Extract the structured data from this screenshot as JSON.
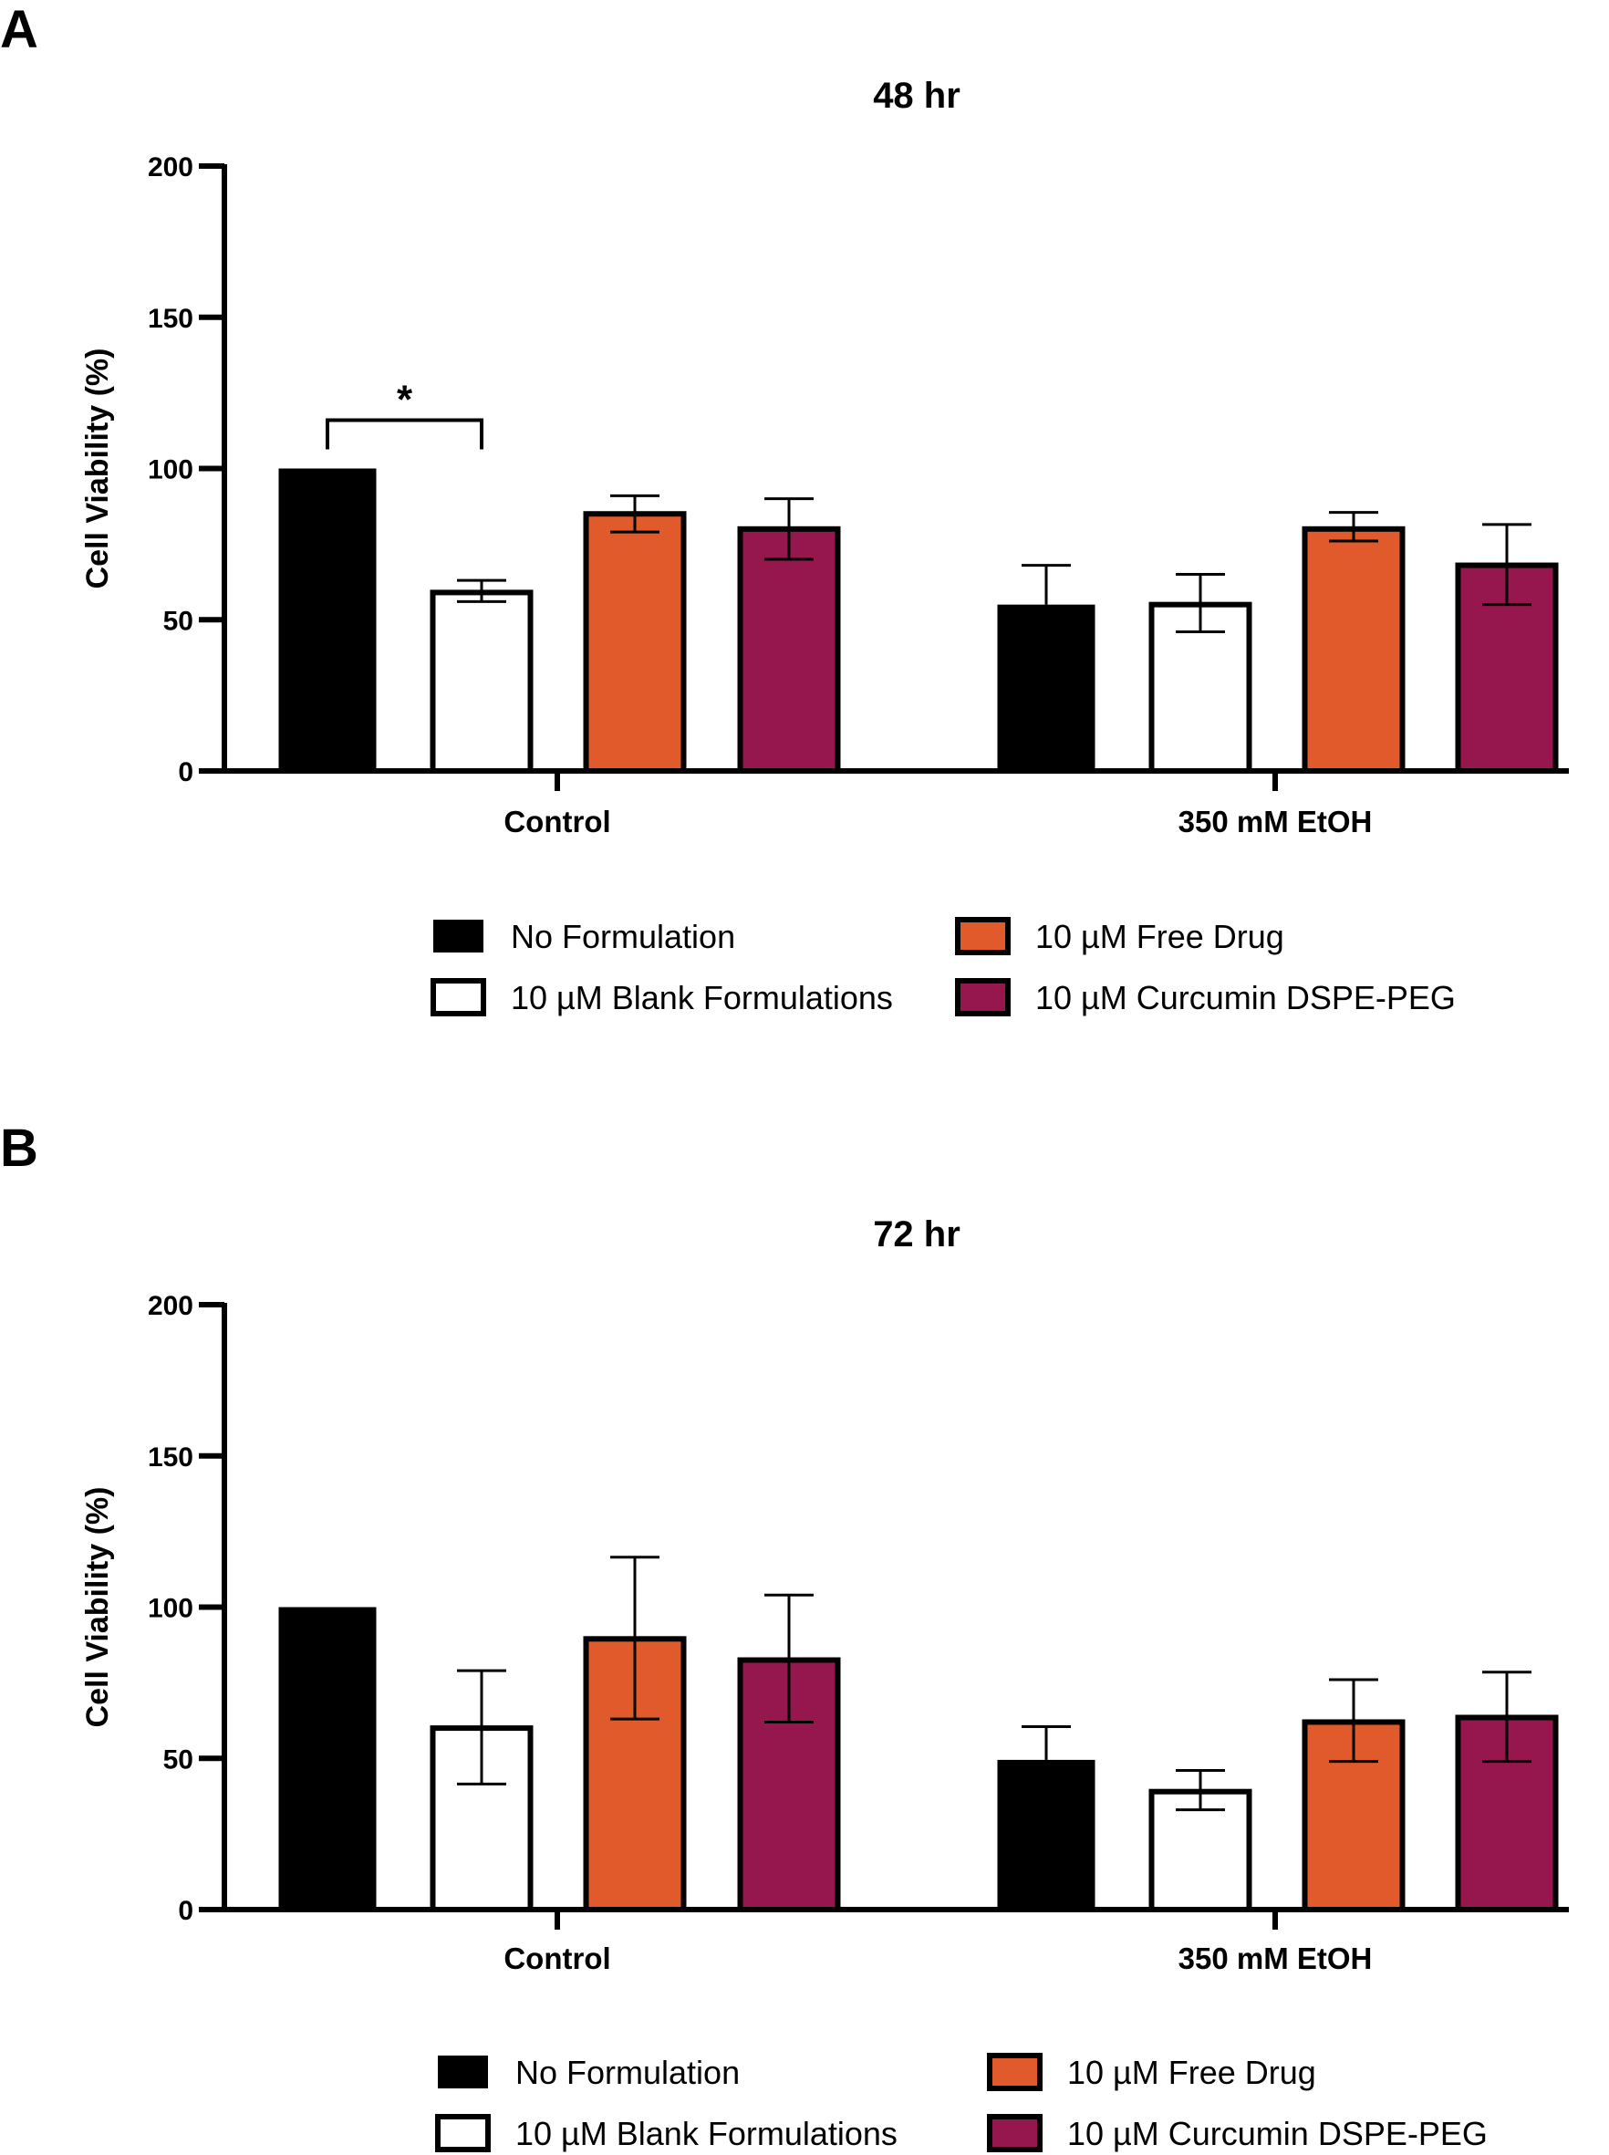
{
  "legend": [
    {
      "label": "No Formulation",
      "fill": "#000000",
      "stroke": "#000000"
    },
    {
      "label": "10 µM Blank Formulations",
      "fill": "#ffffff",
      "stroke": "#000000"
    },
    {
      "label": "10 µM Free Drug",
      "fill": "#e05a2b",
      "stroke": "#000000"
    },
    {
      "label": "10 µM Curcumin DSPE-PEG",
      "fill": "#96174e",
      "stroke": "#000000"
    }
  ],
  "chart_data": [
    {
      "panel": "A",
      "type": "bar",
      "title": "48 hr",
      "xlabel": "",
      "ylabel": "Cell Viability (%)",
      "ylim": [
        0,
        200
      ],
      "yticks": [
        0,
        50,
        100,
        150,
        200
      ],
      "categories": [
        "Control",
        "350 mM EtOH"
      ],
      "series": [
        {
          "name": "No Formulation",
          "values": [
            100,
            55
          ],
          "err_hi": [
            0,
            13
          ],
          "err_lo": [
            0,
            0
          ]
        },
        {
          "name": "10 µM Blank Formulations",
          "values": [
            59,
            55
          ],
          "err_hi": [
            4,
            10
          ],
          "err_lo": [
            3,
            9
          ]
        },
        {
          "name": "10 µM Free Drug",
          "values": [
            85,
            80
          ],
          "err_hi": [
            6,
            5.5
          ],
          "err_lo": [
            6,
            4
          ]
        },
        {
          "name": "10 µM Curcumin DSPE-PEG",
          "values": [
            80,
            68
          ],
          "err_hi": [
            10,
            13.5
          ],
          "err_lo": [
            10,
            13
          ]
        }
      ],
      "annotations": [
        {
          "text": "*",
          "category": 0,
          "from_series": 0,
          "to_series": 1,
          "level": 116
        }
      ]
    },
    {
      "panel": "B",
      "type": "bar",
      "title": "72 hr",
      "xlabel": "",
      "ylabel": "Cell Viability (%)",
      "ylim": [
        0,
        200
      ],
      "yticks": [
        0,
        50,
        100,
        150,
        200
      ],
      "categories": [
        "Control",
        "350 mM EtOH"
      ],
      "series": [
        {
          "name": "No Formulation",
          "values": [
            100,
            49.5
          ],
          "err_hi": [
            0,
            11
          ],
          "err_lo": [
            0,
            0
          ]
        },
        {
          "name": "10 µM Blank Formulations",
          "values": [
            60,
            39
          ],
          "err_hi": [
            19,
            7
          ],
          "err_lo": [
            18.5,
            6
          ]
        },
        {
          "name": "10 µM Free Drug",
          "values": [
            89.5,
            62
          ],
          "err_hi": [
            27,
            14
          ],
          "err_lo": [
            26.5,
            13
          ]
        },
        {
          "name": "10 µM Curcumin DSPE-PEG",
          "values": [
            82.5,
            63.5
          ],
          "err_hi": [
            21.5,
            15
          ],
          "err_lo": [
            20.5,
            14.5
          ]
        }
      ],
      "annotations": []
    }
  ]
}
